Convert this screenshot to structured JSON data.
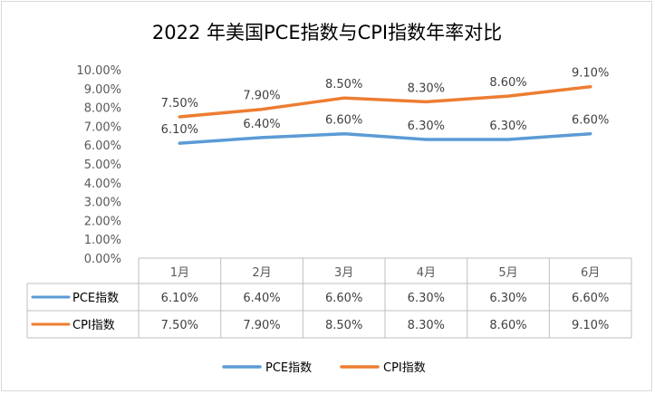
{
  "chart_data": {
    "type": "line",
    "title": "2022 年美国PCE指数与CPI指数年率对比",
    "categories": [
      "1月",
      "2月",
      "3月",
      "4月",
      "5月",
      "6月"
    ],
    "ylim": [
      0,
      10
    ],
    "y_ticks": [
      "0.00%",
      "1.00%",
      "2.00%",
      "3.00%",
      "4.00%",
      "5.00%",
      "6.00%",
      "7.00%",
      "8.00%",
      "9.00%",
      "10.00%"
    ],
    "grid": false,
    "legend_position": "bottom",
    "data_table": true,
    "series": [
      {
        "name": "PCE指数",
        "color": "#5b9bd5",
        "values": [
          6.1,
          6.4,
          6.6,
          6.3,
          6.3,
          6.6
        ],
        "labels": [
          "6.10%",
          "6.40%",
          "6.60%",
          "6.30%",
          "6.30%",
          "6.60%"
        ]
      },
      {
        "name": "CPI指数",
        "color": "#ed7d31",
        "values": [
          7.5,
          7.9,
          8.5,
          8.3,
          8.6,
          9.1
        ],
        "labels": [
          "7.50%",
          "7.90%",
          "8.50%",
          "8.30%",
          "8.60%",
          "9.10%"
        ]
      }
    ]
  }
}
